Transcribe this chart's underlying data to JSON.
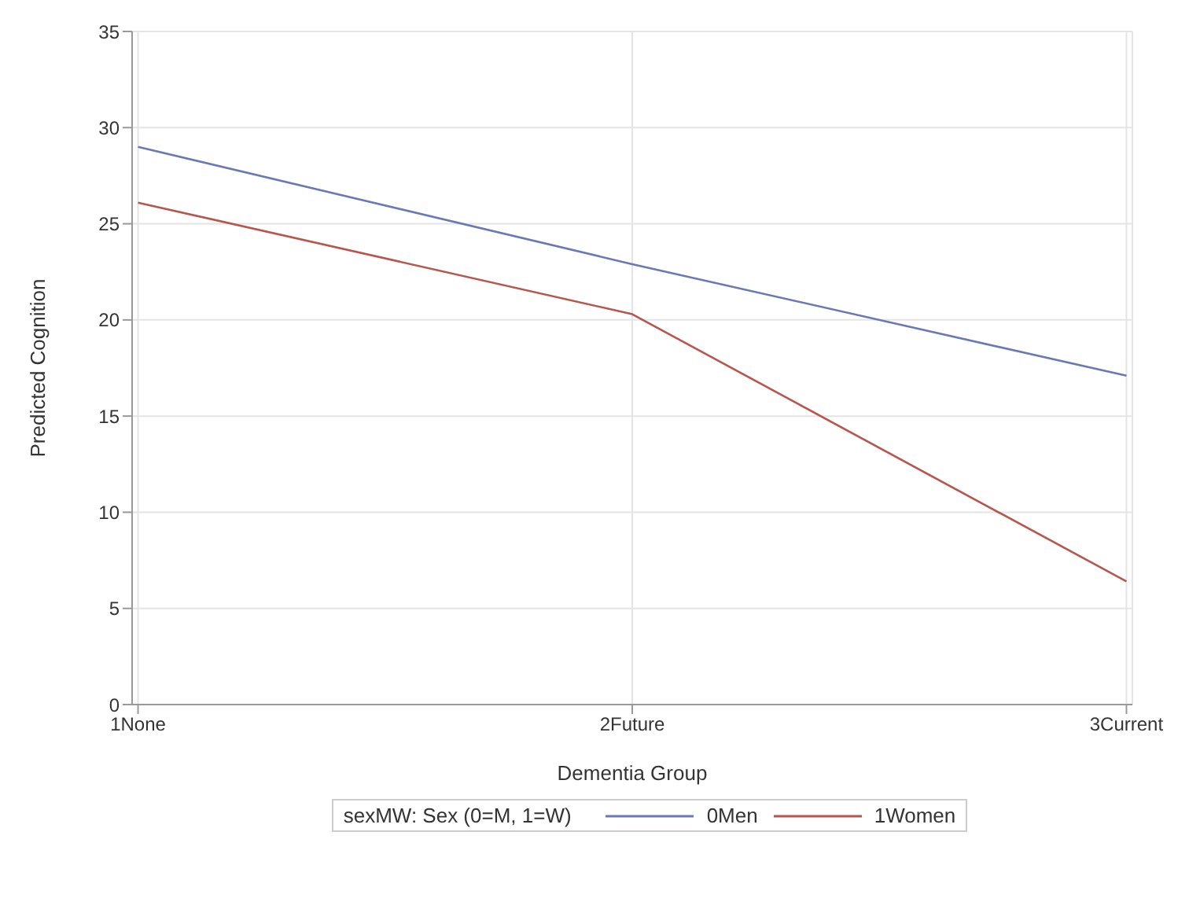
{
  "chart_data": {
    "type": "line",
    "xlabel": "Dementia Group",
    "ylabel": "Predicted Cognition",
    "legend_title": "sexMW: Sex (0=M, 1=W)",
    "categories": [
      "1None",
      "2Future",
      "3Current"
    ],
    "series": [
      {
        "name": "0Men",
        "color": "#6a78b6",
        "values": [
          29.0,
          22.9,
          17.1
        ]
      },
      {
        "name": "1Women",
        "color": "#b8564e",
        "values": [
          26.1,
          20.3,
          6.4
        ]
      }
    ],
    "ylim": [
      0,
      35
    ],
    "yticks": [
      0,
      5,
      10,
      15,
      20,
      25,
      30,
      35
    ],
    "grid": true,
    "legend": "bottom",
    "marker": "none",
    "line_style": "solid"
  }
}
